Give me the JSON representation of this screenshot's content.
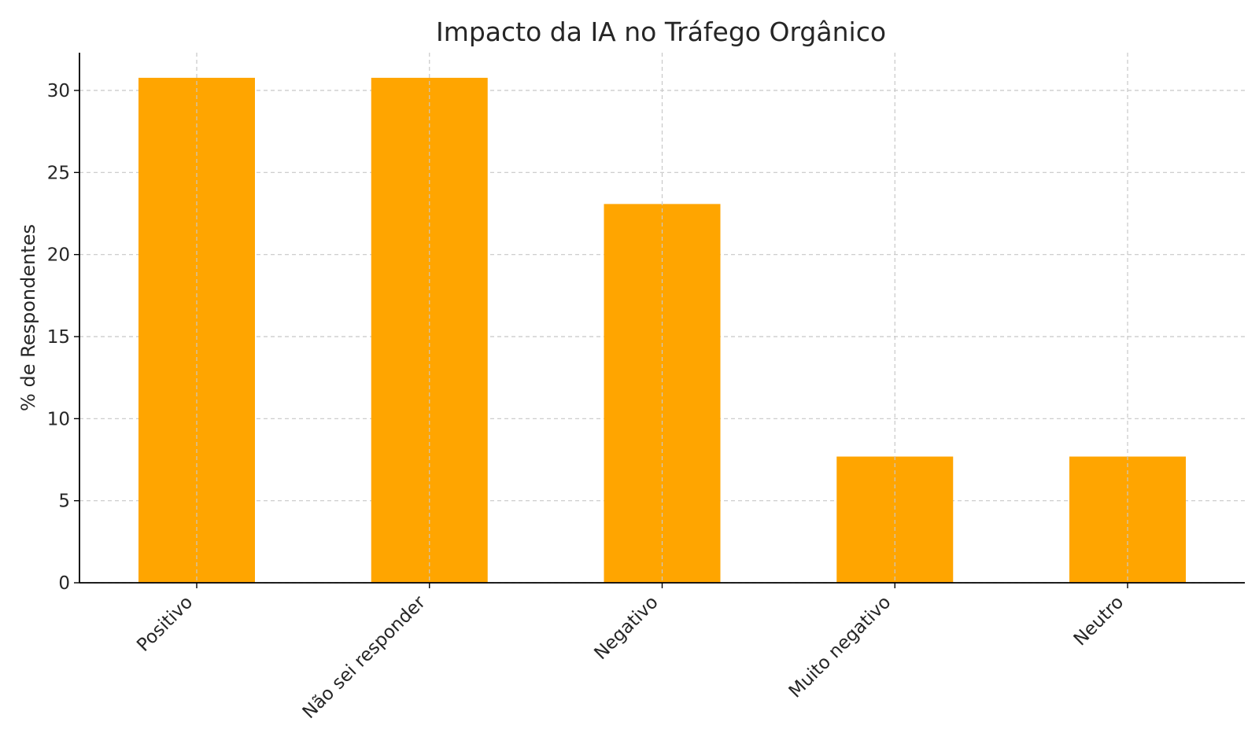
{
  "chart_data": {
    "type": "bar",
    "title": "Impacto da IA no Tráfego Orgânico",
    "xlabel": "",
    "ylabel": "% de Respondentes",
    "categories": [
      "Positivo",
      "Não sei responder",
      "Negativo",
      "Muito negativo",
      "Neutro"
    ],
    "values": [
      30.77,
      30.77,
      23.08,
      7.69,
      7.69
    ],
    "ylim": [
      0,
      32.3
    ],
    "yticks": [
      0,
      5,
      10,
      15,
      20,
      25,
      30
    ],
    "grid": true,
    "bar_color": "#ffa500"
  }
}
